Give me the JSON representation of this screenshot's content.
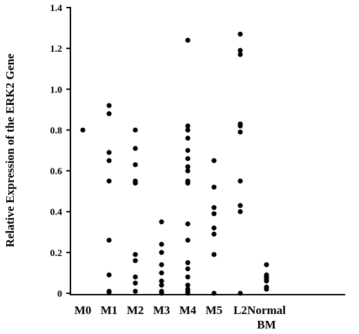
{
  "chart_data": {
    "type": "scatter",
    "ylabel": "Relative Expression of the ERK2 Gene",
    "xlabel": "",
    "ylim": [
      0,
      1.4
    ],
    "yticks": [
      0,
      0.2,
      0.4,
      0.6,
      0.8,
      1.0,
      1.2,
      1.4
    ],
    "ytick_labels": [
      "0",
      "0.2",
      "0.4",
      "0.6",
      "0.8",
      "1.0",
      "1.2",
      "1.4"
    ],
    "categories": [
      {
        "label": [
          "M0"
        ],
        "values": [
          0.8
        ]
      },
      {
        "label": [
          "M1"
        ],
        "values": [
          0.92,
          0.88,
          0.69,
          0.65,
          0.55,
          0.26,
          0.09,
          0.01,
          0.005
        ]
      },
      {
        "label": [
          "M2"
        ],
        "values": [
          0.8,
          0.71,
          0.63,
          0.55,
          0.54,
          0.19,
          0.16,
          0.08,
          0.05,
          0.01
        ]
      },
      {
        "label": [
          "M3"
        ],
        "values": [
          0.35,
          0.24,
          0.2,
          0.14,
          0.1,
          0.06,
          0.04,
          0.01,
          0.0
        ]
      },
      {
        "label": [
          "M4"
        ],
        "values": [
          1.24,
          0.82,
          0.8,
          0.76,
          0.7,
          0.66,
          0.62,
          0.6,
          0.55,
          0.54,
          0.34,
          0.26,
          0.15,
          0.12,
          0.08,
          0.04,
          0.02,
          0.01,
          0.0
        ]
      },
      {
        "label": [
          "M5"
        ],
        "values": [
          0.65,
          0.52,
          0.42,
          0.39,
          0.32,
          0.29,
          0.19,
          0.0
        ]
      },
      {
        "label": [
          "L2"
        ],
        "values": [
          1.27,
          1.19,
          1.17,
          0.83,
          0.82,
          0.79,
          0.55,
          0.43,
          0.4,
          0.0
        ]
      },
      {
        "label": [
          "Normal",
          "BM"
        ],
        "values": [
          0.14,
          0.09,
          0.08,
          0.07,
          0.06,
          0.03,
          0.02
        ]
      }
    ]
  }
}
